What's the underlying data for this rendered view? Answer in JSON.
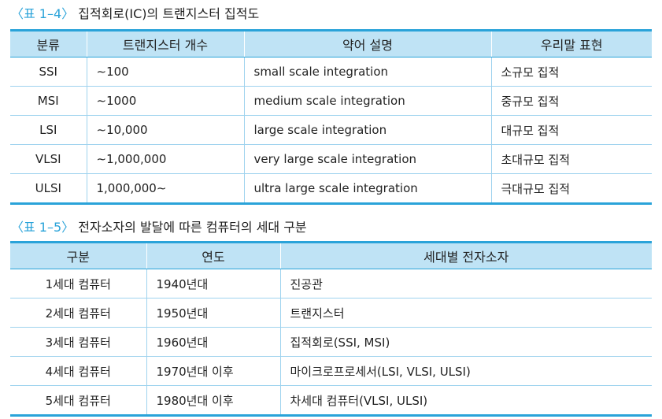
{
  "table1": {
    "number": "〈표 1–4〉",
    "title": "집적회로(IC)의 트랜지스터 집적도",
    "headers": [
      "분류",
      "트랜지스터 개수",
      "약어 설명",
      "우리말 표현"
    ],
    "rows": [
      [
        "SSI",
        "∼100",
        "small scale integration",
        "소규모 집적"
      ],
      [
        "MSI",
        "∼1000",
        "medium scale integration",
        "중규모 집적"
      ],
      [
        "LSI",
        "∼10,000",
        "large scale integration",
        "대규모 집적"
      ],
      [
        "VLSI",
        "∼1,000,000",
        "very large scale integration",
        "초대규모 집적"
      ],
      [
        "ULSI",
        "1,000,000∼",
        "ultra large scale integration",
        "극대규모 집적"
      ]
    ]
  },
  "table2": {
    "number": "〈표 1–5〉",
    "title": "전자소자의 발달에 따른 컴퓨터의 세대 구분",
    "headers": [
      "구분",
      "연도",
      "세대별 전자소자"
    ],
    "rows": [
      [
        "1세대 컴퓨터",
        "1940년대",
        "진공관"
      ],
      [
        "2세대 컴퓨터",
        "1950년대",
        "트랜지스터"
      ],
      [
        "3세대 컴퓨터",
        "1960년대",
        "집적회로(SSI, MSI)"
      ],
      [
        "4세대 컴퓨터",
        "1970년대 이후",
        "마이크로프로세서(LSI, VLSI, ULSI)"
      ],
      [
        "5세대 컴퓨터",
        "1980년대 이후",
        "차세대 컴퓨터(VLSI, ULSI)"
      ]
    ]
  }
}
